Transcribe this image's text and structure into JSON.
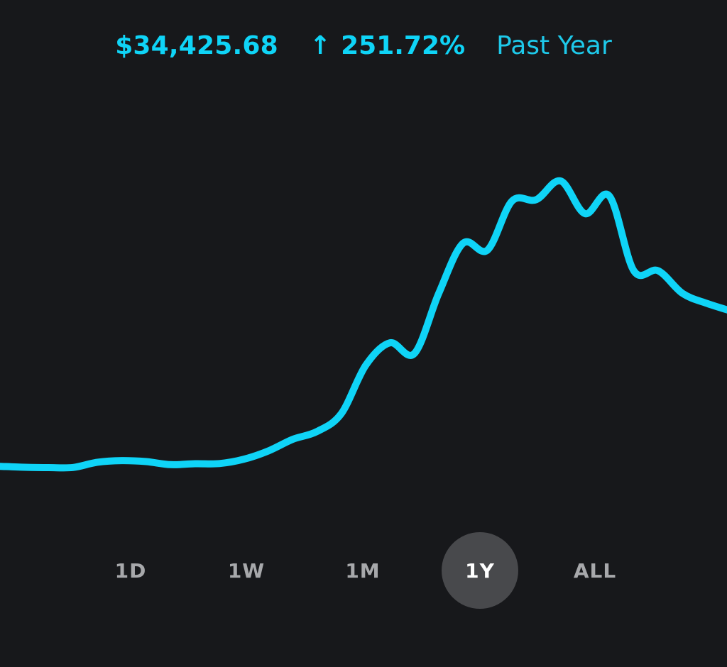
{
  "header": {
    "value": "$34,425.68",
    "change_arrow": "↑",
    "change_pct": "251.72%",
    "period": "Past Year"
  },
  "colors": {
    "background": "#17181b",
    "accent": "#0fd4f7",
    "active_range_bg": "#48494c",
    "range_text": "#a7a8ab"
  },
  "ranges": {
    "items": [
      {
        "label": "1D",
        "active": false
      },
      {
        "label": "1W",
        "active": false
      },
      {
        "label": "1M",
        "active": false
      },
      {
        "label": "1Y",
        "active": true
      },
      {
        "label": "ALL",
        "active": false
      }
    ]
  },
  "chart_data": {
    "type": "line",
    "title": "",
    "xlabel": "",
    "ylabel": "",
    "grid": false,
    "legend": "none",
    "series": [
      {
        "values": [
          9786,
          9713,
          9683,
          9696,
          10113,
          10244,
          10165,
          9920,
          9995,
          10009,
          10352,
          11010,
          11940,
          12569,
          14000,
          17857,
          19670,
          18815,
          23625,
          27637,
          27090,
          31002,
          31119,
          32620,
          30004,
          31414,
          25440,
          25440,
          23625,
          22823,
          22210
        ]
      }
    ]
  }
}
